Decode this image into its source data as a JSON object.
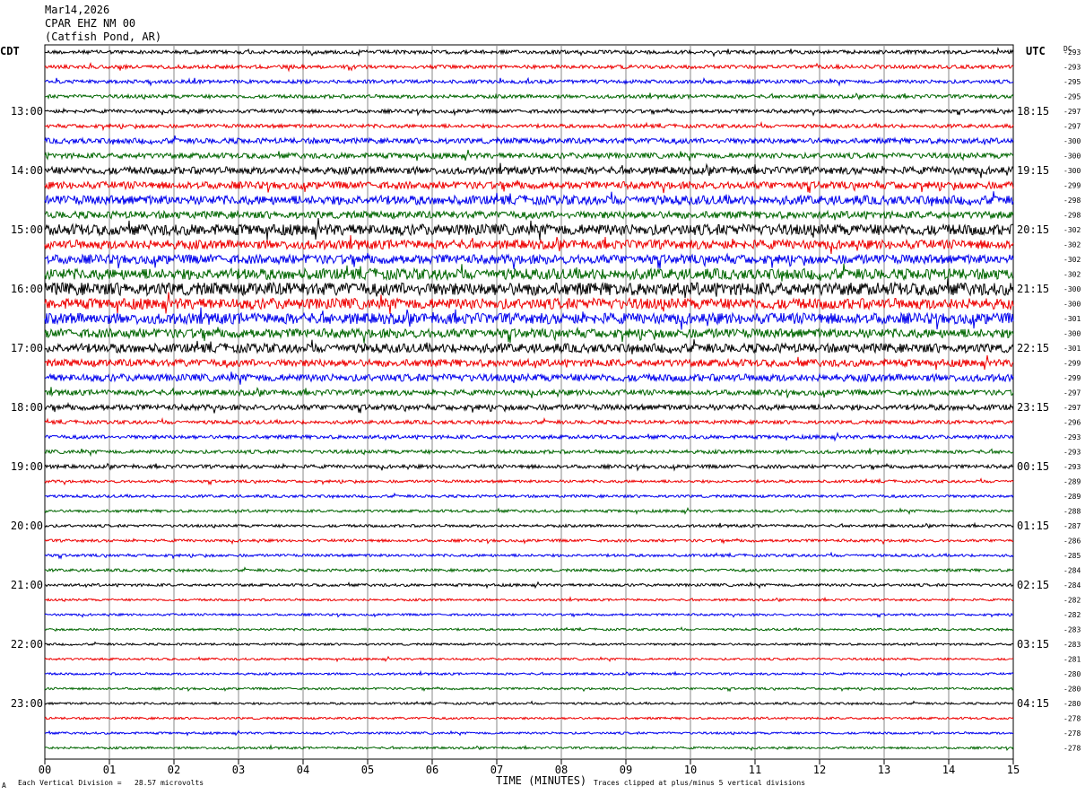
{
  "header": {
    "date": "Mar14,2026",
    "station": "CPAR EHZ NM 00",
    "location": "(Catfish Pond, AR)"
  },
  "left_tz": "CDT",
  "right_tz": "UTC",
  "dc_label": "DC",
  "footer": {
    "scale": "Each Vertical Division =   28.57 microvolts",
    "clip": "Traces clipped at plus/minus 5 vertical divisions",
    "mark": "A",
    "xtitle": "TIME (MINUTES)"
  },
  "colors": {
    "cycle": [
      "#000000",
      "#ee0000",
      "#0000ee",
      "#006600"
    ],
    "grid": "#888888"
  },
  "chart_data": {
    "type": "line",
    "xlabel": "TIME (MINUTES)",
    "xlim": [
      0,
      15
    ],
    "x_ticks": [
      "00",
      "01",
      "02",
      "03",
      "04",
      "05",
      "06",
      "07",
      "08",
      "09",
      "10",
      "11",
      "12",
      "13",
      "14",
      "15"
    ],
    "rows_per_hour": 4,
    "left_hour_labels": [
      "13:00",
      "14:00",
      "15:00",
      "16:00",
      "17:00",
      "18:00",
      "19:00",
      "20:00",
      "21:00",
      "22:00",
      "23:00"
    ],
    "right_hour_labels": [
      "18:15",
      "19:15",
      "20:15",
      "21:15",
      "22:15",
      "23:15",
      "00:15",
      "01:15",
      "02:15",
      "03:15",
      "04:15"
    ],
    "dc_offsets": [
      -293,
      -293,
      -295,
      -295,
      -297,
      -297,
      -300,
      -300,
      -300,
      -299,
      -298,
      -298,
      -302,
      -302,
      -302,
      -302,
      -300,
      -300,
      -301,
      -300,
      -301,
      -299,
      -299,
      -297,
      -297,
      -296,
      -293,
      -293,
      -293,
      -289,
      -289,
      -288,
      -287,
      -286,
      -285,
      -284,
      -284,
      -282,
      -282,
      -283,
      -283,
      -281,
      -280,
      -280,
      -280,
      -278,
      -278,
      -278
    ],
    "trace_amplitude": [
      2,
      2,
      2,
      2,
      2,
      2,
      3,
      3,
      4,
      4,
      5,
      4,
      6,
      5,
      5,
      6,
      7,
      6,
      6,
      5,
      5,
      4,
      4,
      3,
      3,
      2,
      2,
      2,
      2,
      1.5,
      1.5,
      1.5,
      1.5,
      1.5,
      1.5,
      1.5,
      1.5,
      1.2,
      1.2,
      1.2,
      1.2,
      1.2,
      1.2,
      1.2,
      1.2,
      1.2,
      1.2,
      1.2
    ]
  }
}
